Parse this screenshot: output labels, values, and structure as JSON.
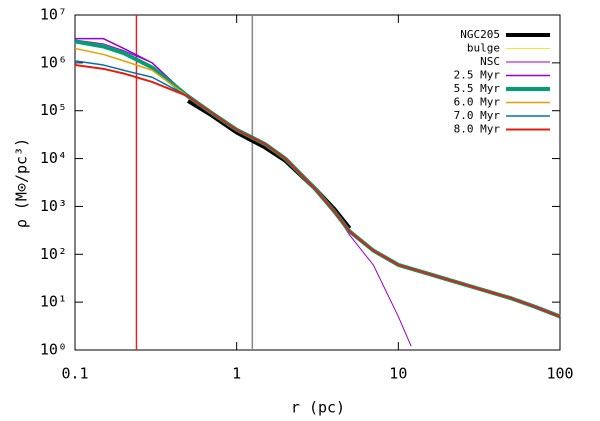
{
  "chart_data": {
    "type": "line",
    "xlabel": "r (pc)",
    "ylabel": "ρ (M⊙/pc³)",
    "xscale": "log",
    "yscale": "log",
    "xlim": [
      0.1,
      100
    ],
    "ylim": [
      1,
      10000000
    ],
    "xticks": [
      0.1,
      1,
      10,
      100
    ],
    "yticks": [
      {
        "value": 1,
        "label": "10⁰"
      },
      {
        "value": 10,
        "label": "10¹"
      },
      {
        "value": 100,
        "label": "10²"
      },
      {
        "value": 1000,
        "label": "10³"
      },
      {
        "value": 10000,
        "label": "10⁴"
      },
      {
        "value": 100000,
        "label": "10⁵"
      },
      {
        "value": 1000000,
        "label": "10⁶"
      },
      {
        "value": 10000000,
        "label": "10⁷"
      }
    ],
    "legend": "top-right",
    "vlines": [
      {
        "x": 0.24,
        "color": "#d62728"
      },
      {
        "x": 1.25,
        "color": "#888888"
      }
    ],
    "x": [
      0.1,
      0.15,
      0.2,
      0.3,
      0.5,
      0.7,
      1,
      1.5,
      2,
      3,
      4,
      5,
      7,
      10,
      12,
      15,
      20,
      30,
      50,
      70,
      100
    ],
    "series": [
      {
        "name": "NGC205",
        "color": "#000000",
        "linewidth": 4,
        "values": [
          null,
          null,
          null,
          null,
          160000,
          80000,
          35000,
          17000,
          9000,
          2500,
          900,
          350,
          null,
          null,
          null,
          null,
          null,
          null,
          null,
          null,
          null
        ]
      },
      {
        "name": "bulge",
        "color": "#f0e442",
        "linewidth": 1,
        "values": [
          null,
          null,
          null,
          null,
          195000,
          null,
          null,
          null,
          null,
          null,
          null,
          null,
          null,
          null,
          null,
          null,
          null,
          null,
          null,
          null,
          null
        ]
      },
      {
        "name": "NSC",
        "color": "#9400d3",
        "linewidth": 1,
        "values": [
          3000000,
          2500000,
          1800000,
          1000000,
          200000,
          90000,
          40000,
          20000,
          10000,
          2500,
          800,
          250,
          60,
          5,
          1.2,
          null,
          null,
          null,
          null,
          null,
          null
        ]
      },
      {
        "name": "2.5 Myr",
        "color": "#9400d3",
        "linewidth": 1.5,
        "values": [
          3200000,
          3200000,
          2000000,
          1000000,
          200000,
          90000,
          40000,
          20000,
          10000,
          2500,
          800,
          300,
          120,
          60,
          50,
          40,
          30,
          20,
          12,
          8,
          5
        ]
      },
      {
        "name": "5.5 Myr",
        "color": "#009e73",
        "linewidth": 4,
        "values": [
          2800000,
          2200000,
          1600000,
          800000,
          200000,
          90000,
          40000,
          20000,
          10000,
          2500,
          800,
          300,
          120,
          60,
          50,
          40,
          30,
          20,
          12,
          8,
          5
        ]
      },
      {
        "name": "6.0 Myr",
        "color": "#e69f00",
        "linewidth": 1.5,
        "values": [
          2000000,
          1500000,
          1100000,
          700000,
          200000,
          90000,
          40000,
          20000,
          10000,
          2500,
          800,
          300,
          120,
          60,
          50,
          40,
          30,
          20,
          12,
          8,
          5
        ]
      },
      {
        "name": "7.0 Myr",
        "color": "#0072b2",
        "linewidth": 1.5,
        "values": [
          1100000,
          900000,
          700000,
          500000,
          200000,
          90000,
          40000,
          20000,
          10000,
          2500,
          800,
          300,
          120,
          60,
          50,
          40,
          30,
          20,
          12,
          8,
          5
        ]
      },
      {
        "name": "8.0 Myr",
        "color": "#e51e10",
        "linewidth": 2,
        "values": [
          900000,
          750000,
          600000,
          400000,
          200000,
          90000,
          40000,
          20000,
          10000,
          2500,
          800,
          300,
          120,
          60,
          50,
          40,
          30,
          20,
          12,
          8,
          5
        ]
      }
    ]
  }
}
